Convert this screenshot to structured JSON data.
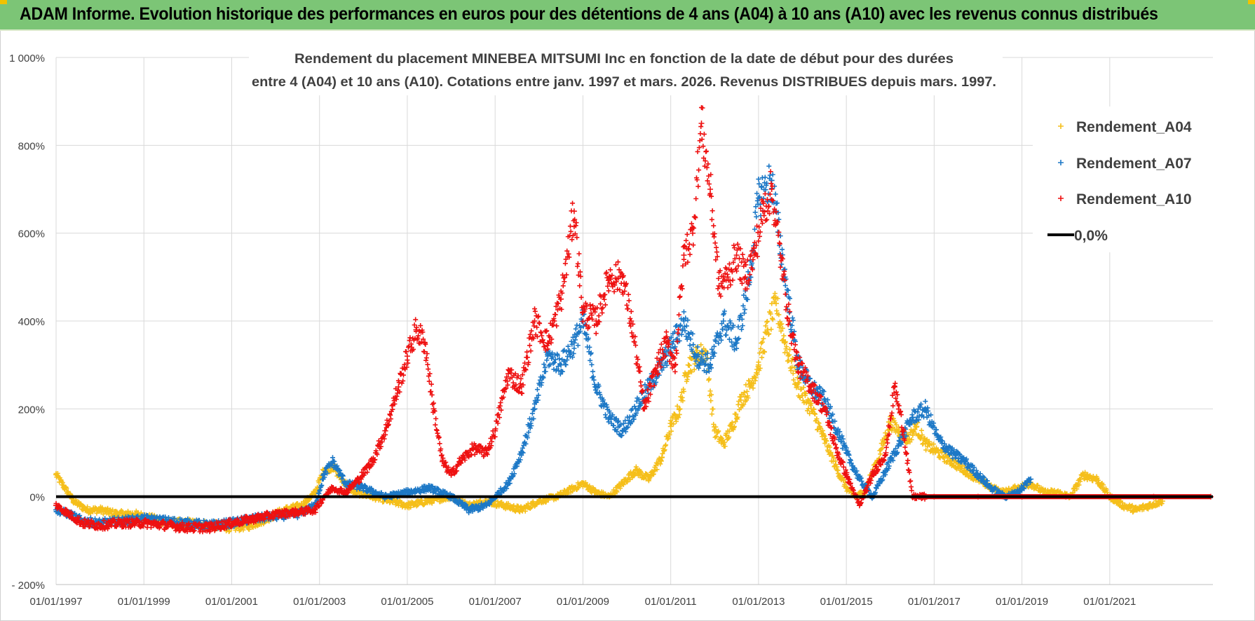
{
  "header": {
    "title": "ADAM Informe. Evolution historique des performances en euros pour des détentions de 4 ans (A04) à 10 ans (A10) avec les revenus connus distribués"
  },
  "colors": {
    "banner": "#7cc576",
    "a04": "#f5bf1b",
    "a07": "#1d78c6",
    "a10": "#ee1111",
    "zero": "#000000",
    "grid": "#d9d9d9"
  },
  "chart_data": {
    "type": "scatter",
    "title_line1": "Rendement du placement MINEBEA MITSUMI  Inc en fonction de la date de début pour des durées",
    "title_line2": "entre 4 (A04) et 10 ans (A10).  Cotations entre janv. 1997 et mars. 2026. Revenus DISTRIBUES depuis mars. 1997.",
    "xlabel": "",
    "ylabel": "",
    "xlim": [
      1997.0,
      2023.35
    ],
    "ylim": [
      -200,
      1000
    ],
    "y_ticks": [
      -200,
      0,
      200,
      400,
      600,
      800,
      1000
    ],
    "y_tick_labels": [
      "- 200%",
      "0%",
      "200%",
      "400%",
      "600%",
      "800%",
      "1 000%"
    ],
    "x_ticks": [
      1997,
      1999,
      2001,
      2003,
      2005,
      2007,
      2009,
      2011,
      2013,
      2015,
      2017,
      2019,
      2021
    ],
    "x_tick_labels": [
      "01/01/1997",
      "01/01/1999",
      "01/01/2001",
      "01/01/2003",
      "01/01/2005",
      "01/01/2007",
      "01/01/2009",
      "01/01/2011",
      "01/01/2013",
      "01/01/2015",
      "01/01/2017",
      "01/01/2019",
      "01/01/2021"
    ],
    "legend_position": "top-right",
    "series": [
      {
        "name": "Rendement_A04",
        "color": "#f5bf1b",
        "x": [
          1997.0,
          1997.2,
          1997.4,
          1997.7,
          1998.0,
          1998.4,
          1998.8,
          1999.2,
          1999.6,
          2000.0,
          2000.5,
          2001.0,
          2001.4,
          2001.8,
          2002.2,
          2002.6,
          2002.9,
          2003.1,
          2003.3,
          2003.5,
          2003.8,
          2004.2,
          2004.6,
          2005.0,
          2005.5,
          2006.0,
          2006.4,
          2006.8,
          2007.2,
          2007.6,
          2008.0,
          2008.4,
          2008.8,
          2009.0,
          2009.3,
          2009.6,
          2009.9,
          2010.2,
          2010.5,
          2010.8,
          2011.0,
          2011.2,
          2011.4,
          2011.6,
          2011.8,
          2012.0,
          2012.2,
          2012.4,
          2012.6,
          2012.8,
          2013.0,
          2013.2,
          2013.4,
          2013.6,
          2013.9,
          2014.2,
          2014.5,
          2014.8,
          2015.0,
          2015.2,
          2015.4,
          2015.7,
          2016.0,
          2016.2,
          2016.4,
          2016.6,
          2016.8,
          2017.1,
          2017.4,
          2017.7,
          2018.0,
          2018.3,
          2018.6,
          2018.9,
          2019.2,
          2019.5,
          2019.8,
          2020.1,
          2020.4,
          2020.7,
          2021.0,
          2021.3,
          2021.6,
          2021.9,
          2022.2
        ],
        "values": [
          50,
          20,
          -10,
          -30,
          -30,
          -40,
          -40,
          -50,
          -60,
          -60,
          -65,
          -70,
          -65,
          -50,
          -30,
          -20,
          10,
          60,
          70,
          40,
          10,
          0,
          -10,
          -20,
          -10,
          0,
          -20,
          -10,
          -20,
          -30,
          -10,
          0,
          20,
          30,
          10,
          0,
          30,
          60,
          40,
          90,
          160,
          200,
          300,
          320,
          330,
          150,
          120,
          160,
          220,
          250,
          300,
          380,
          440,
          350,
          250,
          200,
          130,
          60,
          20,
          0,
          10,
          80,
          170,
          150,
          130,
          160,
          120,
          100,
          80,
          60,
          40,
          20,
          10,
          20,
          30,
          10,
          10,
          0,
          50,
          40,
          0,
          -20,
          -30,
          -20,
          -10
        ]
      },
      {
        "name": "Rendement_A07",
        "color": "#1d78c6",
        "x": [
          1997.0,
          1997.3,
          1997.6,
          1998.0,
          1998.5,
          1999.0,
          1999.5,
          2000.0,
          2000.5,
          2001.0,
          2001.5,
          2002.0,
          2002.5,
          2002.9,
          2003.1,
          2003.3,
          2003.6,
          2004.0,
          2004.5,
          2005.0,
          2005.5,
          2006.0,
          2006.4,
          2006.8,
          2007.0,
          2007.3,
          2007.6,
          2007.9,
          2008.2,
          2008.5,
          2008.8,
          2009.0,
          2009.3,
          2009.6,
          2009.9,
          2010.2,
          2010.5,
          2010.8,
          2011.0,
          2011.3,
          2011.6,
          2011.9,
          2012.2,
          2012.5,
          2012.8,
          2013.0,
          2013.3,
          2013.6,
          2013.9,
          2014.2,
          2014.5,
          2014.8,
          2015.0,
          2015.3,
          2015.6,
          2015.9,
          2016.2,
          2016.5,
          2016.8,
          2017.1,
          2017.4,
          2017.7,
          2018.0,
          2018.3,
          2018.6,
          2018.9,
          2019.2
        ],
        "values": [
          -30,
          -40,
          -55,
          -60,
          -55,
          -50,
          -55,
          -60,
          -65,
          -60,
          -50,
          -45,
          -40,
          -20,
          50,
          80,
          30,
          20,
          0,
          10,
          20,
          0,
          -30,
          -20,
          0,
          30,
          100,
          200,
          320,
          300,
          350,
          400,
          250,
          180,
          150,
          200,
          250,
          300,
          340,
          400,
          320,
          300,
          400,
          350,
          500,
          680,
          720,
          500,
          300,
          250,
          220,
          150,
          100,
          40,
          0,
          60,
          120,
          180,
          200,
          130,
          100,
          80,
          50,
          20,
          0,
          10,
          40
        ]
      },
      {
        "name": "Rendement_A10",
        "color": "#ee1111",
        "x": [
          1997.0,
          1997.3,
          1997.6,
          1998.0,
          1998.5,
          1999.0,
          1999.5,
          2000.0,
          2000.5,
          2001.0,
          2001.5,
          2002.0,
          2002.5,
          2002.9,
          2003.1,
          2003.3,
          2003.6,
          2003.9,
          2004.2,
          2004.5,
          2004.8,
          2005.0,
          2005.2,
          2005.4,
          2005.6,
          2005.8,
          2006.0,
          2006.2,
          2006.5,
          2006.8,
          2007.0,
          2007.3,
          2007.6,
          2007.9,
          2008.2,
          2008.5,
          2008.8,
          2009.0,
          2009.3,
          2009.6,
          2009.9,
          2010.1,
          2010.4,
          2010.7,
          2010.9,
          2011.1,
          2011.3,
          2011.5,
          2011.7,
          2011.9,
          2012.1,
          2012.3,
          2012.5,
          2012.7,
          2012.9,
          2013.1,
          2013.3,
          2013.5,
          2013.7,
          2013.9,
          2014.2,
          2014.5,
          2014.8,
          2015.0,
          2015.3,
          2015.6,
          2015.9,
          2016.1,
          2016.3,
          2016.5,
          2016.7,
          2017.0,
          2018.0,
          2019.0,
          2020.0,
          2021.0,
          2022.0,
          2023.3
        ],
        "values": [
          -20,
          -40,
          -60,
          -65,
          -60,
          -60,
          -65,
          -70,
          -70,
          -60,
          -50,
          -40,
          -35,
          -30,
          0,
          20,
          10,
          40,
          80,
          150,
          250,
          320,
          380,
          350,
          200,
          80,
          50,
          80,
          110,
          100,
          150,
          280,
          250,
          400,
          350,
          450,
          650,
          420,
          400,
          500,
          500,
          400,
          200,
          300,
          350,
          300,
          550,
          600,
          850,
          700,
          480,
          500,
          550,
          500,
          550,
          650,
          700,
          550,
          400,
          300,
          250,
          200,
          100,
          50,
          -20,
          50,
          100,
          250,
          150,
          0,
          0,
          0,
          0,
          0,
          0,
          0,
          0,
          0
        ]
      },
      {
        "name": "0,0%",
        "color": "#000000",
        "type": "line",
        "x": [
          1997.0,
          2023.35
        ],
        "values": [
          0,
          0
        ]
      }
    ]
  }
}
